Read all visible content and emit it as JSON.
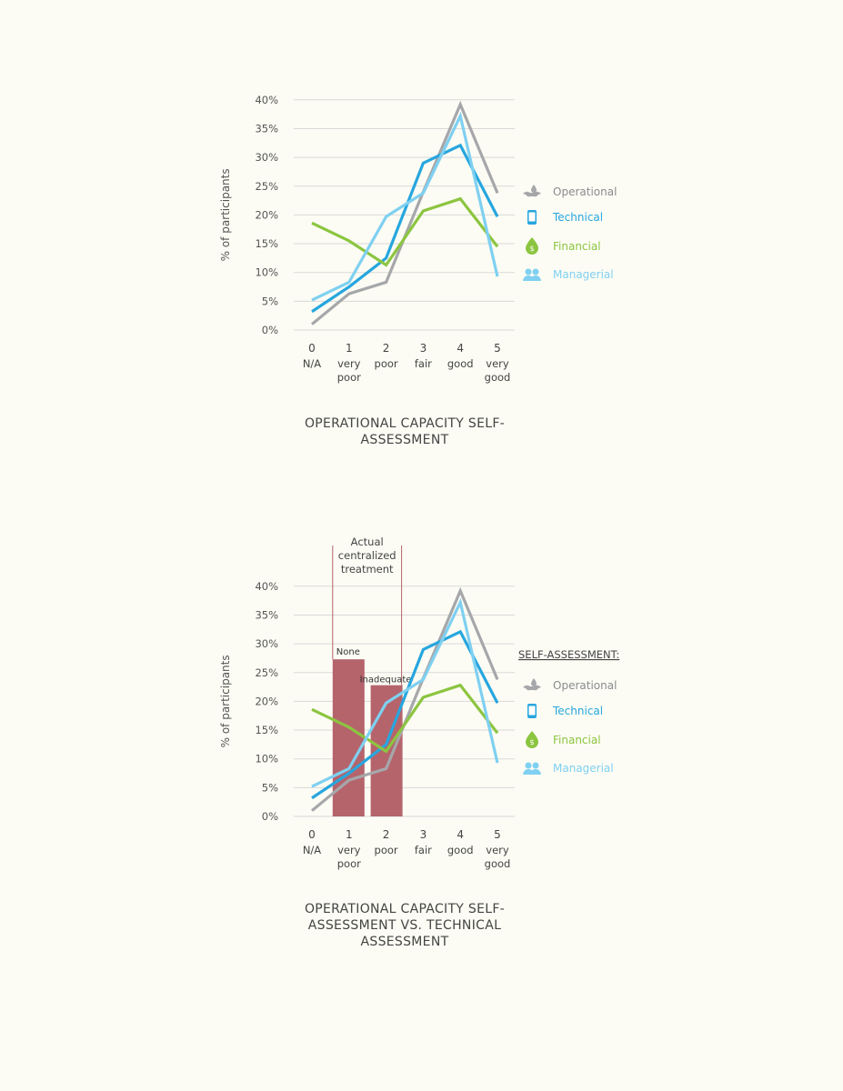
{
  "colors": {
    "Operational": "#a6a7aa",
    "Technical": "#27a6de",
    "Financial": "#8cc540",
    "Managerial": "#7fd0f1",
    "bars": "#b5646c",
    "grid": "#d9d9d9"
  },
  "chart_data": [
    {
      "type": "line",
      "title": "OPERATIONAL CAPACITY SELF-ASSESSMENT",
      "ylabel": "% of participants",
      "ylim": [
        0,
        40
      ],
      "yticks": [
        "0%",
        "5%",
        "10%",
        "15%",
        "20%",
        "25%",
        "30%",
        "35%",
        "40%"
      ],
      "categories": [
        [
          "0",
          "N/A"
        ],
        [
          "1",
          "very poor"
        ],
        [
          "2",
          "poor"
        ],
        [
          "3",
          "fair"
        ],
        [
          "4",
          "good"
        ],
        [
          "5",
          "very good"
        ]
      ],
      "grid": true,
      "legend_position": "right",
      "series": [
        {
          "name": "Operational",
          "icon": "wrench-drop-icon",
          "values": [
            1.0,
            6.3,
            8.3,
            24.0,
            39.2,
            23.8
          ]
        },
        {
          "name": "Technical",
          "icon": "smartphone-icon",
          "values": [
            3.2,
            7.5,
            12.5,
            29.0,
            32.1,
            19.7
          ]
        },
        {
          "name": "Financial",
          "icon": "money-drop-icon",
          "values": [
            18.6,
            15.5,
            11.3,
            20.7,
            22.8,
            14.5
          ]
        },
        {
          "name": "Managerial",
          "icon": "people-icon",
          "values": [
            5.2,
            8.3,
            19.7,
            23.8,
            37.2,
            9.3
          ]
        }
      ]
    },
    {
      "type": "line",
      "title": "OPERATIONAL CAPACITY SELF-ASSESSMENT VS. TECHNICAL ASSESSMENT",
      "ylabel": "% of participants",
      "ylim": [
        0,
        40
      ],
      "yticks": [
        "0%",
        "5%",
        "10%",
        "15%",
        "20%",
        "25%",
        "30%",
        "35%",
        "40%"
      ],
      "categories": [
        [
          "0",
          "N/A"
        ],
        [
          "1",
          "very poor"
        ],
        [
          "2",
          "poor"
        ],
        [
          "3",
          "fair"
        ],
        [
          "4",
          "good"
        ],
        [
          "5",
          "very good"
        ]
      ],
      "grid": true,
      "legend_title": "SELF-ASSESSMENT:",
      "legend_position": "right",
      "annotation": "Actual centralized treatment",
      "bars": [
        {
          "label": "None",
          "category": 1,
          "value": 27.3
        },
        {
          "label": "Inadequate",
          "category": 2,
          "value": 22.8
        }
      ],
      "series": [
        {
          "name": "Operational",
          "icon": "wrench-drop-icon",
          "values": [
            1.0,
            6.3,
            8.3,
            24.0,
            39.2,
            23.8
          ]
        },
        {
          "name": "Technical",
          "icon": "smartphone-icon",
          "values": [
            3.2,
            7.5,
            12.5,
            29.0,
            32.1,
            19.7
          ]
        },
        {
          "name": "Financial",
          "icon": "money-drop-icon",
          "values": [
            18.6,
            15.5,
            11.3,
            20.7,
            22.8,
            14.5
          ]
        },
        {
          "name": "Managerial",
          "icon": "people-icon",
          "values": [
            5.2,
            8.3,
            19.7,
            23.8,
            37.2,
            9.3
          ]
        }
      ]
    }
  ]
}
